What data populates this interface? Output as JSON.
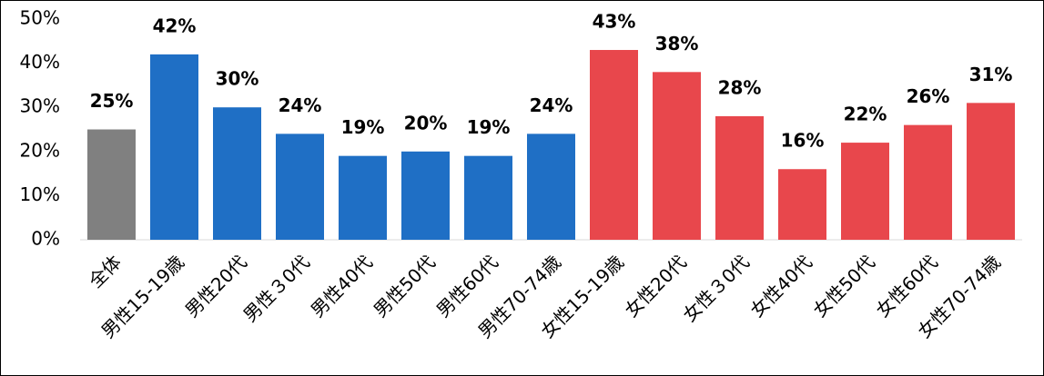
{
  "chart_data": {
    "type": "bar",
    "categories": [
      "全体",
      "男性15-19歳",
      "男性20代",
      "男性３0代",
      "男性40代",
      "男性50代",
      "男性60代",
      "男性70-74歳",
      "女性15-19歳",
      "女性20代",
      "女性３0代",
      "女性40代",
      "女性50代",
      "女性60代",
      "女性70-74歳"
    ],
    "values": [
      25,
      42,
      30,
      24,
      19,
      20,
      19,
      24,
      43,
      38,
      28,
      16,
      22,
      26,
      31
    ],
    "value_labels": [
      "25%",
      "42%",
      "30%",
      "24%",
      "19%",
      "20%",
      "19%",
      "24%",
      "43%",
      "38%",
      "28%",
      "16%",
      "22%",
      "26%",
      "31%"
    ],
    "colors": [
      "#808080",
      "#1f6fc5",
      "#1f6fc5",
      "#1f6fc5",
      "#1f6fc5",
      "#1f6fc5",
      "#1f6fc5",
      "#1f6fc5",
      "#e8474c",
      "#e8474c",
      "#e8474c",
      "#e8474c",
      "#e8474c",
      "#e8474c",
      "#e8474c"
    ],
    "ylim": [
      0,
      50
    ],
    "yticks": [
      {
        "value": 0,
        "label": "0%"
      },
      {
        "value": 10,
        "label": "10%"
      },
      {
        "value": 20,
        "label": "20%"
      },
      {
        "value": 30,
        "label": "30%"
      },
      {
        "value": 40,
        "label": "40%"
      },
      {
        "value": 50,
        "label": "50%"
      }
    ],
    "grid": false
  }
}
